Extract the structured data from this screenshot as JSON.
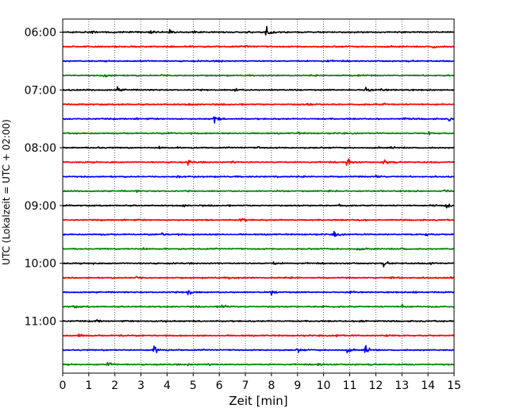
{
  "chart_data": {
    "type": "line",
    "title": "",
    "xlabel": "Zeit  [min]",
    "ylabel": "UTC (Lokalzeit = UTC + 02:00)",
    "xlim": [
      0,
      15
    ],
    "x_ticks": [
      "0",
      "1",
      "2",
      "3",
      "4",
      "5",
      "6",
      "7",
      "8",
      "9",
      "10",
      "11",
      "12",
      "13",
      "14",
      "15"
    ],
    "y_ticks": [
      "06:00",
      "07:00",
      "08:00",
      "09:00",
      "10:00",
      "11:00"
    ],
    "grid": "vertical dotted at each minute",
    "legend": "none",
    "color_cycle": [
      "#000000",
      "#ff0000",
      "#0000ff",
      "#008000"
    ],
    "traces": [
      {
        "label": "06:00",
        "color": "#000000",
        "events": [
          [
            3.3,
            0.8
          ],
          [
            4.1,
            0.5
          ],
          [
            5.0,
            0.4
          ],
          [
            7.8,
            2.2
          ],
          [
            1.1,
            0.3
          ]
        ]
      },
      {
        "label": "06:15",
        "color": "#ff0000",
        "events": [
          [
            1.2,
            0.3
          ],
          [
            7.0,
            0.3
          ],
          [
            14.2,
            0.6
          ]
        ]
      },
      {
        "label": "06:30",
        "color": "#0000ff",
        "events": [
          [
            3.0,
            0.3
          ],
          [
            6.0,
            0.3
          ],
          [
            10.1,
            0.3
          ]
        ]
      },
      {
        "label": "06:45",
        "color": "#008000",
        "events": [
          [
            1.6,
            0.8
          ],
          [
            3.8,
            0.3
          ],
          [
            11.3,
            0.3
          ]
        ]
      },
      {
        "label": "07:00",
        "color": "#000000",
        "events": [
          [
            2.1,
            0.7
          ],
          [
            6.6,
            0.6
          ],
          [
            11.6,
            1.1
          ],
          [
            12.2,
            0.4
          ]
        ]
      },
      {
        "label": "07:15",
        "color": "#ff0000",
        "events": [
          [
            4.8,
            0.3
          ],
          [
            9.4,
            0.4
          ],
          [
            12.3,
            0.3
          ]
        ]
      },
      {
        "label": "07:30",
        "color": "#0000ff",
        "events": [
          [
            5.8,
            1.2
          ],
          [
            2.8,
            0.4
          ],
          [
            13.1,
            0.3
          ],
          [
            14.8,
            0.5
          ]
        ]
      },
      {
        "label": "07:45",
        "color": "#008000",
        "events": [
          [
            4.1,
            0.4
          ],
          [
            9.0,
            0.3
          ],
          [
            14.0,
            0.4
          ]
        ]
      },
      {
        "label": "08:00",
        "color": "#000000",
        "events": [
          [
            1.3,
            0.3
          ],
          [
            3.7,
            0.4
          ],
          [
            7.5,
            0.3
          ],
          [
            12.6,
            0.3
          ]
        ]
      },
      {
        "label": "08:15",
        "color": "#ff0000",
        "events": [
          [
            4.8,
            0.9
          ],
          [
            6.5,
            0.4
          ],
          [
            10.9,
            1.6
          ],
          [
            12.3,
            1.2
          ],
          [
            1.8,
            0.3
          ]
        ]
      },
      {
        "label": "08:30",
        "color": "#0000ff",
        "events": [
          [
            4.4,
            0.4
          ],
          [
            8.1,
            0.3
          ],
          [
            12.0,
            0.4
          ]
        ]
      },
      {
        "label": "08:45",
        "color": "#008000",
        "events": [
          [
            2.8,
            0.3
          ],
          [
            10.2,
            0.4
          ],
          [
            14.6,
            0.3
          ]
        ]
      },
      {
        "label": "09:00",
        "color": "#000000",
        "events": [
          [
            4.6,
            0.3
          ],
          [
            10.6,
            0.4
          ],
          [
            14.2,
            0.6
          ],
          [
            14.7,
            0.9
          ]
        ]
      },
      {
        "label": "09:15",
        "color": "#ff0000",
        "events": [
          [
            6.8,
            1.1
          ],
          [
            2.3,
            0.3
          ],
          [
            11.4,
            0.3
          ]
        ]
      },
      {
        "label": "09:30",
        "color": "#0000ff",
        "events": [
          [
            3.8,
            0.5
          ],
          [
            10.4,
            0.9
          ],
          [
            13.9,
            0.4
          ]
        ]
      },
      {
        "label": "09:45",
        "color": "#008000",
        "events": [
          [
            3.1,
            0.3
          ],
          [
            11.3,
            0.4
          ],
          [
            13.0,
            0.4
          ]
        ]
      },
      {
        "label": "10:00",
        "color": "#000000",
        "events": [
          [
            1.1,
            0.3
          ],
          [
            8.1,
            0.4
          ],
          [
            12.3,
            0.7
          ],
          [
            14.1,
            0.4
          ]
        ]
      },
      {
        "label": "10:15",
        "color": "#ff0000",
        "events": [
          [
            2.8,
            0.4
          ],
          [
            6.4,
            0.5
          ],
          [
            12.6,
            0.4
          ],
          [
            14.9,
            0.3
          ]
        ]
      },
      {
        "label": "10:30",
        "color": "#0000ff",
        "events": [
          [
            4.8,
            1.0
          ],
          [
            8.0,
            0.6
          ],
          [
            11.0,
            0.6
          ],
          [
            13.4,
            0.4
          ]
        ]
      },
      {
        "label": "10:45",
        "color": "#008000",
        "events": [
          [
            0.4,
            0.4
          ],
          [
            6.1,
            1.1
          ],
          [
            9.9,
            0.4
          ],
          [
            13.0,
            0.6
          ]
        ]
      },
      {
        "label": "11:00",
        "color": "#000000",
        "events": [
          [
            1.3,
            0.4
          ],
          [
            3.8,
            0.4
          ],
          [
            11.4,
            0.5
          ]
        ]
      },
      {
        "label": "11:15",
        "color": "#ff0000",
        "events": [
          [
            0.6,
            0.6
          ],
          [
            2.2,
            0.3
          ],
          [
            10.5,
            0.3
          ],
          [
            12.4,
            0.4
          ]
        ]
      },
      {
        "label": "11:30",
        "color": "#0000ff",
        "events": [
          [
            3.5,
            1.3
          ],
          [
            9.0,
            0.6
          ],
          [
            10.9,
            0.7
          ],
          [
            11.6,
            1.5
          ]
        ]
      },
      {
        "label": "11:45",
        "color": "#008000",
        "events": [
          [
            1.7,
            1.0
          ],
          [
            5.6,
            0.4
          ],
          [
            9.8,
            0.4
          ],
          [
            4.8,
            0.3
          ]
        ]
      }
    ]
  }
}
